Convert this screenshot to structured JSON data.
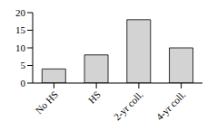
{
  "chart_data": {
    "type": "bar",
    "categories": [
      "No HS",
      "HS",
      "2-yr coll.",
      "4-yr coll."
    ],
    "values": [
      4,
      8,
      18,
      10
    ],
    "color": "#d3d3d3",
    "ylim": [
      0,
      20
    ],
    "yticks": [
      0,
      5,
      10,
      15,
      20
    ],
    "grid": false
  }
}
